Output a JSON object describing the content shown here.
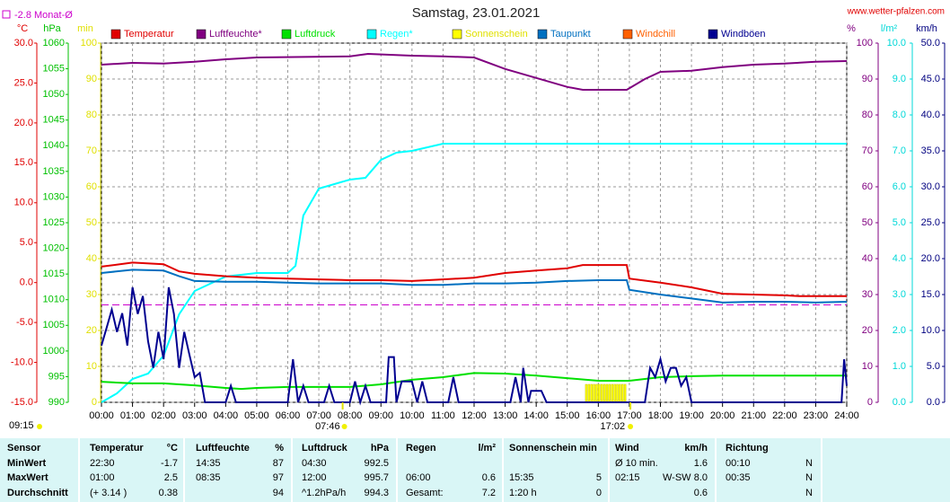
{
  "chart_data": {
    "type": "line",
    "title": "Samstag, 23.01.2021",
    "source": "www.wetter-pfalzen.com",
    "monthly_avg": {
      "value": -2.8,
      "label": "-2.8 Monat-Ø",
      "color": "#cc00cc"
    },
    "annotations": {
      "daylength": "09:15",
      "sunrise": "07:46",
      "sunset": "17:02"
    },
    "xlim": [
      0,
      24
    ],
    "xticks": [
      {
        "value": 0,
        "label": "00:00"
      },
      {
        "value": 1,
        "label": "01:00"
      },
      {
        "value": 2,
        "label": "02:00"
      },
      {
        "value": 3,
        "label": "03:00"
      },
      {
        "value": 4,
        "label": "04:00"
      },
      {
        "value": 5,
        "label": "05:00"
      },
      {
        "value": 6,
        "label": "06:00"
      },
      {
        "value": 7,
        "label": "07:00"
      },
      {
        "value": 8,
        "label": "08:00"
      },
      {
        "value": 9,
        "label": "09:00"
      },
      {
        "value": 10,
        "label": "10:00"
      },
      {
        "value": 11,
        "label": "11:00"
      },
      {
        "value": 12,
        "label": "12:00"
      },
      {
        "value": 13,
        "label": "13:00"
      },
      {
        "value": 14,
        "label": "14:00"
      },
      {
        "value": 15,
        "label": "15:00"
      },
      {
        "value": 16,
        "label": "16:00"
      },
      {
        "value": 17,
        "label": "17:00"
      },
      {
        "value": 18,
        "label": "18:00"
      },
      {
        "value": 19,
        "label": "19:00"
      },
      {
        "value": 20,
        "label": "20:00"
      },
      {
        "value": 21,
        "label": "21:00"
      },
      {
        "value": 22,
        "label": "22:00"
      },
      {
        "value": 23,
        "label": "23:00"
      },
      {
        "value": 24,
        "label": "24:00"
      }
    ],
    "grid": true,
    "axes": {
      "temp": {
        "label": "°C",
        "color": "#e00000",
        "lim": [
          -15,
          30
        ],
        "ticks": [
          {
            "value": -15,
            "label": "-15.0"
          },
          {
            "value": -10,
            "label": "-10.0"
          },
          {
            "value": -5,
            "label": "-5.0"
          },
          {
            "value": 0,
            "label": "0.0"
          },
          {
            "value": 5,
            "label": "5.0"
          },
          {
            "value": 10,
            "label": "10.0"
          },
          {
            "value": 15,
            "label": "15.0"
          },
          {
            "value": 20,
            "label": "20.0"
          },
          {
            "value": 25,
            "label": "25.0"
          },
          {
            "value": 30,
            "label": "30.0"
          }
        ]
      },
      "press": {
        "label": "hPa",
        "color": "#00c000",
        "lim": [
          990,
          1060
        ],
        "ticks": [
          990,
          995,
          1000,
          1005,
          1010,
          1015,
          1020,
          1025,
          1030,
          1035,
          1040,
          1045,
          1050,
          1055,
          1060
        ]
      },
      "min": {
        "label": "min",
        "color": "#e0e000",
        "lim": [
          0,
          100
        ],
        "ticks": [
          0,
          10,
          20,
          30,
          40,
          50,
          60,
          70,
          80,
          90,
          100
        ]
      },
      "hum": {
        "label": "%",
        "color": "#800080",
        "lim": [
          0,
          100
        ],
        "ticks": [
          0,
          10,
          20,
          30,
          40,
          50,
          60,
          70,
          80,
          90,
          100
        ]
      },
      "rain": {
        "label": "l/m²",
        "color": "#00d8d8",
        "lim": [
          0,
          10
        ],
        "ticks": [
          {
            "value": 0,
            "label": "0.0"
          },
          {
            "value": 1,
            "label": "1.0"
          },
          {
            "value": 2,
            "label": "2.0"
          },
          {
            "value": 3,
            "label": "3.0"
          },
          {
            "value": 4,
            "label": "4.0"
          },
          {
            "value": 5,
            "label": "5.0"
          },
          {
            "value": 6,
            "label": "6.0"
          },
          {
            "value": 7,
            "label": "7.0"
          },
          {
            "value": 8,
            "label": "8.0"
          },
          {
            "value": 9,
            "label": "9.0"
          },
          {
            "value": 10,
            "label": "10.0"
          }
        ]
      },
      "wind": {
        "label": "km/h",
        "color": "#000080",
        "lim": [
          0,
          50
        ],
        "ticks": [
          {
            "value": 0,
            "label": "0.0"
          },
          {
            "value": 5,
            "label": "5.0"
          },
          {
            "value": 10,
            "label": "10.0"
          },
          {
            "value": 15,
            "label": "15.0"
          },
          {
            "value": 20,
            "label": "20.0"
          },
          {
            "value": 25,
            "label": "25.0"
          },
          {
            "value": 30,
            "label": "30.0"
          },
          {
            "value": 35,
            "label": "35.0"
          },
          {
            "value": 40,
            "label": "40.0"
          },
          {
            "value": 45,
            "label": "45.0"
          },
          {
            "value": 50,
            "label": "50.0"
          }
        ]
      }
    },
    "series": [
      {
        "name": "Temperatur",
        "color": "#e00000",
        "axis": "temp",
        "x": [
          0,
          1,
          2,
          2.5,
          3,
          4,
          5,
          6,
          7,
          8,
          9,
          10,
          11,
          12,
          13,
          14,
          15,
          15.5,
          16.917,
          17,
          18,
          19,
          20,
          21,
          22,
          22.5,
          24
        ],
        "values": [
          2.0,
          2.5,
          2.3,
          1.4,
          1.1,
          0.8,
          0.6,
          0.5,
          0.4,
          0.3,
          0.3,
          0.2,
          0.4,
          0.6,
          1.2,
          1.5,
          1.8,
          2.2,
          2.2,
          0.5,
          0.0,
          -0.6,
          -1.4,
          -1.5,
          -1.6,
          -1.7,
          -1.7
        ]
      },
      {
        "name": "Luftfeuchte*",
        "color": "#800080",
        "axis": "hum",
        "x": [
          0,
          1,
          2,
          3,
          4,
          5,
          8,
          8.583,
          10,
          11,
          12,
          13,
          14,
          15,
          15.5,
          16.917,
          17.5,
          18,
          19,
          20,
          21,
          22,
          23,
          24
        ],
        "values": [
          94,
          94.5,
          94.3,
          94.8,
          95.5,
          96,
          96.3,
          97,
          96.5,
          96.3,
          96,
          92.8,
          90.3,
          87.8,
          87,
          87,
          90,
          92,
          92.3,
          93.3,
          94,
          94.3,
          94.8,
          95
        ]
      },
      {
        "name": "Luftdruck",
        "color": "#00e000",
        "axis": "press",
        "x": [
          0,
          1,
          2,
          3,
          4,
          4.5,
          5,
          6,
          7,
          8,
          9,
          10,
          11,
          12,
          13,
          14,
          15,
          16,
          17,
          18,
          19,
          20,
          24
        ],
        "values": [
          994.0,
          993.7,
          993.7,
          993.3,
          992.8,
          992.6,
          992.8,
          993.0,
          993.0,
          993.0,
          993.5,
          994.4,
          994.9,
          995.7,
          995.6,
          995.2,
          994.7,
          994.2,
          994.2,
          994.9,
          995.1,
          995.2,
          995.2
        ]
      },
      {
        "name": "Regen*",
        "color": "#00ffff",
        "axis": "rain",
        "x": [
          0,
          0.5,
          1,
          1.5,
          2,
          2.5,
          3,
          3.5,
          4,
          5,
          6,
          6.25,
          6.5,
          7,
          8,
          8.5,
          9,
          9.5,
          10,
          11,
          24
        ],
        "values": [
          0,
          0.25,
          0.65,
          0.8,
          1.3,
          2.45,
          3.1,
          3.3,
          3.5,
          3.6,
          3.6,
          3.8,
          5.2,
          5.95,
          6.2,
          6.25,
          6.75,
          6.95,
          7.0,
          7.2,
          7.2
        ]
      },
      {
        "name": "Sonnenschein",
        "color": "#ffff00",
        "axis": "min",
        "kind": "bar",
        "x": [
          15.583,
          15.667,
          15.75,
          15.833,
          15.917,
          16,
          16.083,
          16.167,
          16.25,
          16.333,
          16.417,
          16.5,
          16.583,
          16.667,
          16.75,
          16.833
        ],
        "values": [
          5,
          5,
          5,
          5,
          5,
          5,
          5,
          5,
          5,
          5,
          5,
          5,
          5,
          5,
          5,
          5
        ]
      },
      {
        "name": "Taupunkt",
        "color": "#0070c0",
        "axis": "temp",
        "x": [
          0,
          1,
          2,
          2.5,
          3,
          4,
          5,
          6,
          7,
          8,
          9,
          10,
          11,
          12,
          13,
          14,
          15,
          16,
          16.917,
          17,
          18,
          19,
          20,
          21,
          22,
          23,
          24
        ],
        "values": [
          1.2,
          1.6,
          1.5,
          0.8,
          0.2,
          0.1,
          0.1,
          0.0,
          -0.1,
          -0.1,
          -0.1,
          -0.3,
          -0.3,
          -0.1,
          -0.1,
          0.0,
          0.2,
          0.3,
          0.3,
          -0.9,
          -1.5,
          -2.0,
          -2.5,
          -2.4,
          -2.4,
          -2.5,
          -2.4
        ]
      },
      {
        "name": "Windchill",
        "color": "#ff6000",
        "axis": "temp",
        "x": [
          0,
          24
        ],
        "values": [
          null,
          null
        ]
      },
      {
        "name": "Windböen",
        "color": "#000090",
        "axis": "wind",
        "x": [
          0,
          0.167,
          0.333,
          0.5,
          0.667,
          0.833,
          1,
          1.167,
          1.333,
          1.5,
          1.667,
          1.833,
          2,
          2.167,
          2.333,
          2.5,
          2.667,
          2.833,
          3,
          3.167,
          3.333,
          4,
          4.167,
          4.333,
          6,
          6.167,
          6.333,
          6.5,
          6.667,
          7.167,
          7.333,
          7.5,
          8,
          8.167,
          8.333,
          8.5,
          8.667,
          9.167,
          9.25,
          9.417,
          9.5,
          9.667,
          10,
          10.167,
          10.333,
          10.5,
          11.167,
          11.333,
          11.5,
          13.167,
          13.333,
          13.5,
          13.583,
          13.75,
          13.833,
          14.167,
          14.333,
          17.5,
          17.667,
          17.833,
          18,
          18.167,
          18.333,
          18.5,
          18.667,
          18.833,
          19,
          23.833,
          23.917,
          24
        ],
        "values": [
          7.9,
          10.4,
          12.9,
          9.8,
          12.4,
          7.9,
          16,
          12.3,
          14.8,
          8.5,
          4.8,
          9.8,
          6,
          16,
          12.3,
          4.8,
          9.8,
          6.6,
          3.5,
          4.1,
          0,
          0,
          2.3,
          0,
          0,
          6,
          0,
          2.3,
          0,
          0,
          2.3,
          0,
          0,
          2.9,
          0,
          2.3,
          0,
          0,
          6.3,
          6.3,
          0,
          2.9,
          2.9,
          0,
          2.9,
          0,
          0,
          3.5,
          0,
          0,
          3.5,
          0,
          4.8,
          0,
          1.6,
          1.6,
          0,
          0,
          4.8,
          3.5,
          6,
          2.9,
          4.8,
          4.8,
          2.3,
          3.5,
          0,
          0,
          6,
          2.3
        ]
      }
    ]
  },
  "table": {
    "header": [
      "Sensor",
      "Temperatur",
      "°C",
      "Luftfeuchte",
      "%",
      "Luftdruck",
      "hPa",
      "Regen",
      "l/m²",
      "Sonnenschein min",
      null,
      "Wind",
      null,
      "km/h",
      "Richtung",
      null
    ],
    "rows": [
      [
        "MinWert",
        "22:30",
        "-1.7",
        "14:35",
        "87",
        "04:30",
        "992.5",
        null,
        null,
        null,
        null,
        "Ø 10 min.",
        null,
        "1.6",
        "00:10",
        "N"
      ],
      [
        "MaxWert",
        "01:00",
        "2.5",
        "08:35",
        "97",
        "12:00",
        "995.7",
        "06:00",
        "0.6",
        "15:35",
        "5",
        "02:15",
        "W-SW",
        "8.0",
        "00:35",
        "N"
      ],
      [
        "Durchschnitt",
        "(+ 3.14 )",
        "0.38",
        null,
        "94",
        "^1.2hPa/h",
        "994.3",
        "Gesamt:",
        "7.2",
        "1:20 h",
        "0",
        null,
        null,
        "0.6",
        null,
        "N"
      ]
    ]
  }
}
